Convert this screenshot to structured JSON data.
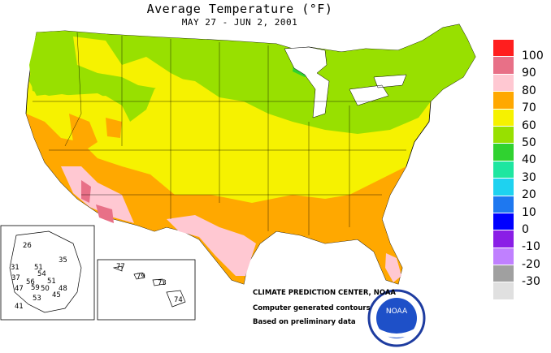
{
  "title_line": "Average Temperature (°F)",
  "subtitle": "MAY 27 - JUN  2, 2001",
  "legend": [
    {
      "label": "100",
      "color": "#ff1e1e"
    },
    {
      "label": "90",
      "color": "#e87087"
    },
    {
      "label": "80",
      "color": "#ffc8d2"
    },
    {
      "label": "70",
      "color": "#ffa800"
    },
    {
      "label": "60",
      "color": "#f6f200"
    },
    {
      "label": "50",
      "color": "#98e000"
    },
    {
      "label": "40",
      "color": "#30d230"
    },
    {
      "label": "30",
      "color": "#1ee6a0"
    },
    {
      "label": "20",
      "color": "#1ed2f0"
    },
    {
      "label": "10",
      "color": "#1e78f0"
    },
    {
      "label": "0",
      "color": "#0000ff"
    },
    {
      "label": "-10",
      "color": "#8a1ee6"
    },
    {
      "label": "-20",
      "color": "#c080ff"
    },
    {
      "label": "-30",
      "color": "#a0a0a0"
    },
    {
      "label": "",
      "color": "#e0e0e0"
    }
  ],
  "alaska_labels": [
    "26",
    "31",
    "51",
    "35",
    "37",
    "54",
    "56",
    "51",
    "47",
    "59",
    "50",
    "48",
    "53",
    "45",
    "41"
  ],
  "hawaii_labels": [
    "77",
    "79",
    "73",
    "74"
  ],
  "credits": {
    "center": "CLIMATE PREDICTION CENTER, NOAA",
    "generated": "Computer generated contours",
    "prelim": "Based on preliminary data"
  },
  "logo": {
    "text": "NOAA"
  }
}
